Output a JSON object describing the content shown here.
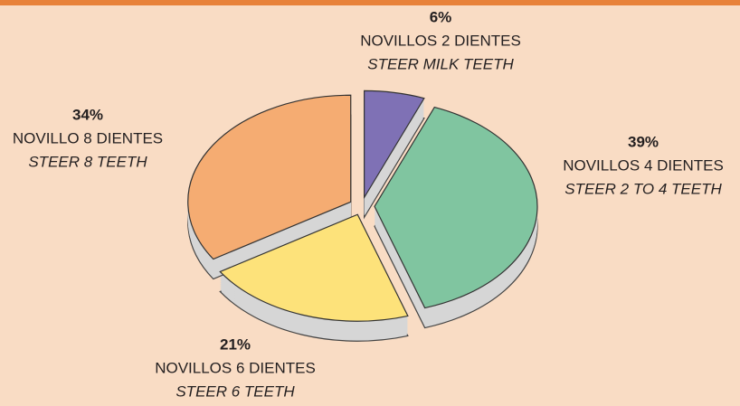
{
  "chart_data": {
    "type": "pie",
    "categories": [
      "NOVILLOS 2 DIENTES",
      "NOVILLOS 4 DIENTES",
      "NOVILLOS 6 DIENTES",
      "NOVILLO 8 DIENTES"
    ],
    "category_translations": [
      "STEER MILK TEETH",
      "STEER 2 TO 4 TEETH",
      "STEER 6 TEETH",
      "STEER 8 TEETH"
    ],
    "values": [
      6,
      39,
      21,
      34
    ],
    "value_labels": [
      "6%",
      "39%",
      "21%",
      "34%"
    ],
    "colors": [
      "#7f71b5",
      "#80c5a0",
      "#fde27a",
      "#f5ac72"
    ]
  }
}
